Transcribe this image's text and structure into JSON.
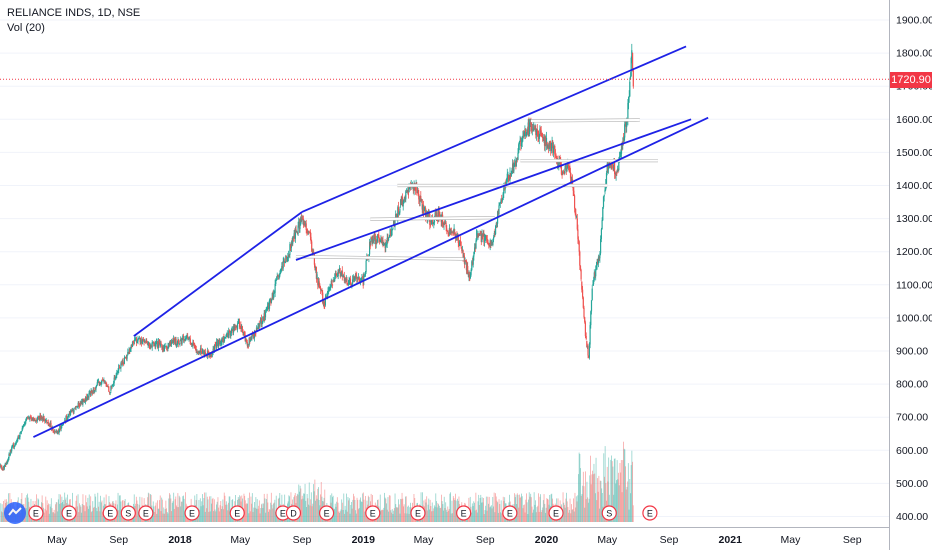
{
  "legend": {
    "symbol": "RELIANCE INDS, 1D, NSE",
    "volume": "Vol (20)"
  },
  "colors": {
    "up": "#26a69a",
    "down": "#ef5350",
    "channel": "#1e22e6",
    "level": "#ffffff",
    "price_line": "#f23645",
    "badge": "#f23645",
    "axis_border": "#b2b5be",
    "event_circle": "#f23645"
  },
  "chart_data": {
    "type": "candlestick",
    "symbol": "RELIANCE INDS",
    "interval": "1D",
    "exchange": "NSE",
    "last_price": "1720.90",
    "ylim": [
      380,
      1940
    ],
    "y_ticks": [
      "1900.00",
      "1800.00",
      "1700.00",
      "1600.00",
      "1500.00",
      "1400.00",
      "1300.00",
      "1200.00",
      "1100.00",
      "1000.00",
      "900.00",
      "800.00",
      "700.00",
      "600.00",
      "500.00",
      "400.00"
    ],
    "x_ticks": [
      {
        "label": "May",
        "bold": false
      },
      {
        "label": "Sep",
        "bold": false
      },
      {
        "label": "2018",
        "bold": true
      },
      {
        "label": "May",
        "bold": false
      },
      {
        "label": "Sep",
        "bold": false
      },
      {
        "label": "2019",
        "bold": true
      },
      {
        "label": "May",
        "bold": false
      },
      {
        "label": "Sep",
        "bold": false
      },
      {
        "label": "2020",
        "bold": true
      },
      {
        "label": "May",
        "bold": false
      },
      {
        "label": "Sep",
        "bold": false
      },
      {
        "label": "2021",
        "bold": true
      },
      {
        "label": "May",
        "bold": false
      },
      {
        "label": "Sep",
        "bold": false
      }
    ],
    "price_path": [
      [
        "2017-01-01",
        555
      ],
      [
        "2017-01-15",
        545
      ],
      [
        "2017-02-01",
        610
      ],
      [
        "2017-02-15",
        640
      ],
      [
        "2017-03-01",
        700
      ],
      [
        "2017-03-15",
        690
      ],
      [
        "2017-04-01",
        700
      ],
      [
        "2017-04-15",
        680
      ],
      [
        "2017-05-01",
        650
      ],
      [
        "2017-05-15",
        690
      ],
      [
        "2017-06-01",
        720
      ],
      [
        "2017-06-15",
        740
      ],
      [
        "2017-07-01",
        760
      ],
      [
        "2017-07-15",
        790
      ],
      [
        "2017-08-01",
        810
      ],
      [
        "2017-08-15",
        780
      ],
      [
        "2017-09-01",
        850
      ],
      [
        "2017-09-15",
        880
      ],
      [
        "2017-10-01",
        930
      ],
      [
        "2017-10-15",
        935
      ],
      [
        "2017-11-01",
        915
      ],
      [
        "2017-11-15",
        920
      ],
      [
        "2017-12-01",
        910
      ],
      [
        "2017-12-15",
        925
      ],
      [
        "2018-01-01",
        930
      ],
      [
        "2018-01-15",
        945
      ],
      [
        "2018-02-01",
        905
      ],
      [
        "2018-02-15",
        900
      ],
      [
        "2018-03-01",
        890
      ],
      [
        "2018-03-15",
        920
      ],
      [
        "2018-04-01",
        940
      ],
      [
        "2018-04-15",
        965
      ],
      [
        "2018-05-01",
        980
      ],
      [
        "2018-05-15",
        920
      ],
      [
        "2018-06-01",
        960
      ],
      [
        "2018-06-15",
        1000
      ],
      [
        "2018-07-01",
        1050
      ],
      [
        "2018-07-15",
        1120
      ],
      [
        "2018-08-01",
        1180
      ],
      [
        "2018-08-15",
        1240
      ],
      [
        "2018-09-01",
        1300
      ],
      [
        "2018-09-15",
        1260
      ],
      [
        "2018-10-01",
        1120
      ],
      [
        "2018-10-15",
        1040
      ],
      [
        "2018-11-01",
        1110
      ],
      [
        "2018-11-15",
        1140
      ],
      [
        "2018-12-01",
        1100
      ],
      [
        "2018-12-15",
        1120
      ],
      [
        "2019-01-01",
        1110
      ],
      [
        "2019-01-15",
        1230
      ],
      [
        "2019-02-01",
        1240
      ],
      [
        "2019-02-15",
        1220
      ],
      [
        "2019-03-01",
        1280
      ],
      [
        "2019-03-15",
        1340
      ],
      [
        "2019-04-01",
        1380
      ],
      [
        "2019-04-15",
        1400
      ],
      [
        "2019-05-01",
        1330
      ],
      [
        "2019-05-15",
        1290
      ],
      [
        "2019-06-01",
        1320
      ],
      [
        "2019-06-15",
        1270
      ],
      [
        "2019-07-01",
        1260
      ],
      [
        "2019-07-15",
        1210
      ],
      [
        "2019-08-01",
        1120
      ],
      [
        "2019-08-15",
        1250
      ],
      [
        "2019-09-01",
        1240
      ],
      [
        "2019-09-15",
        1220
      ],
      [
        "2019-10-01",
        1350
      ],
      [
        "2019-10-15",
        1420
      ],
      [
        "2019-11-01",
        1470
      ],
      [
        "2019-11-15",
        1560
      ],
      [
        "2019-12-01",
        1580
      ],
      [
        "2019-12-15",
        1560
      ],
      [
        "2020-01-01",
        1530
      ],
      [
        "2020-01-15",
        1510
      ],
      [
        "2020-02-01",
        1440
      ],
      [
        "2020-02-15",
        1460
      ],
      [
        "2020-03-01",
        1300
      ],
      [
        "2020-03-10",
        1110
      ],
      [
        "2020-03-20",
        930
      ],
      [
        "2020-03-25",
        880
      ],
      [
        "2020-04-01",
        1100
      ],
      [
        "2020-04-15",
        1180
      ],
      [
        "2020-04-25",
        1380
      ],
      [
        "2020-05-01",
        1460
      ],
      [
        "2020-05-10",
        1470
      ],
      [
        "2020-05-20",
        1440
      ],
      [
        "2020-06-01",
        1540
      ],
      [
        "2020-06-10",
        1600
      ],
      [
        "2020-06-15",
        1720
      ],
      [
        "2020-06-19",
        1800
      ],
      [
        "2020-06-22",
        1720
      ]
    ],
    "channel_lines": [
      [
        [
          "2017-10-01",
          945
        ],
        [
          "2018-09-01",
          1320
        ]
      ],
      [
        [
          "2018-09-01",
          1320
        ],
        [
          "2020-10-05",
          1820
        ]
      ],
      [
        [
          "2017-03-15",
          640
        ],
        [
          "2020-11-18",
          1605
        ]
      ],
      [
        [
          "2018-08-20",
          1175
        ],
        [
          "2020-10-15",
          1600
        ]
      ]
    ],
    "horizontal_levels": [
      [
        [
          "2018-08-20",
          1185
        ],
        [
          "2019-07-20",
          1178
        ]
      ],
      [
        [
          "2019-01-15",
          1298
        ],
        [
          "2019-09-20",
          1303
        ]
      ],
      [
        [
          "2019-03-10",
          1400
        ],
        [
          "2020-05-01",
          1400
        ]
      ],
      [
        [
          "2019-11-10",
          1475
        ],
        [
          "2020-08-10",
          1475
        ]
      ],
      [
        [
          "2019-12-01",
          1595
        ],
        [
          "2020-07-05",
          1598
        ]
      ]
    ],
    "events": [
      {
        "date": "2017-03-20",
        "label": "E"
      },
      {
        "date": "2017-05-25",
        "label": "E"
      },
      {
        "date": "2017-08-15",
        "label": "E"
      },
      {
        "date": "2017-09-20",
        "label": "S"
      },
      {
        "date": "2017-10-25",
        "label": "E"
      },
      {
        "date": "2018-01-25",
        "label": "E"
      },
      {
        "date": "2018-04-25",
        "label": "E"
      },
      {
        "date": "2018-07-25",
        "label": "E"
      },
      {
        "date": "2018-08-15",
        "label": "D"
      },
      {
        "date": "2018-10-20",
        "label": "E"
      },
      {
        "date": "2019-01-20",
        "label": "E"
      },
      {
        "date": "2019-04-20",
        "label": "E"
      },
      {
        "date": "2019-07-20",
        "label": "E"
      },
      {
        "date": "2019-10-20",
        "label": "E"
      },
      {
        "date": "2020-01-20",
        "label": "E"
      },
      {
        "date": "2020-05-05",
        "label": "S"
      },
      {
        "date": "2020-07-25",
        "label": "E"
      }
    ]
  }
}
